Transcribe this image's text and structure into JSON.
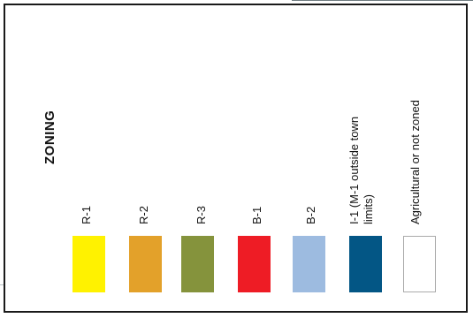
{
  "legend": {
    "title": "ZONING",
    "items": [
      {
        "label": "R-1",
        "color": "#fff200"
      },
      {
        "label": "R-2",
        "color": "#e3a12a"
      },
      {
        "label": "R-3",
        "color": "#85933c"
      },
      {
        "label": "B-1",
        "color": "#ee1c25"
      },
      {
        "label": "B-2",
        "color": "#9dbbe0"
      },
      {
        "label_line1": "I-1 (M-1 outside town",
        "label_line2": "limits)",
        "color": "#035685"
      },
      {
        "label": "Agricultural or not zoned",
        "color": "#ffffff",
        "border": "#aaaaaa"
      }
    ]
  }
}
